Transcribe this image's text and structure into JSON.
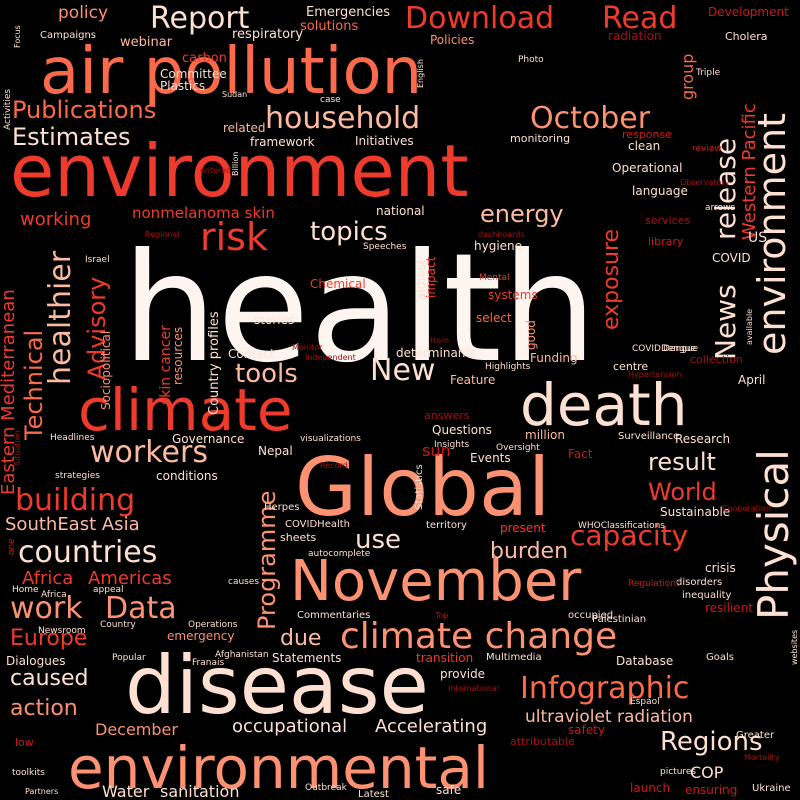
{
  "palette": {
    "background": "#000000",
    "white": "#fff5f0",
    "pale": "#fee0d2",
    "light": "#fcbba1",
    "salmon": "#fc9272",
    "coral": "#fb6a4a",
    "red": "#ef3b2c",
    "crimson": "#cb181d",
    "dark": "#a50f15",
    "deep": "#67000d"
  },
  "words": [
    {
      "text": "health",
      "color": "white"
    },
    {
      "text": "environment",
      "color": "red"
    },
    {
      "text": "air pollution",
      "color": "coral"
    },
    {
      "text": "disease",
      "color": "pale"
    },
    {
      "text": "Global",
      "color": "salmon"
    },
    {
      "text": "November",
      "color": "salmon"
    },
    {
      "text": "environmental",
      "color": "salmon"
    },
    {
      "text": "climate",
      "color": "red"
    },
    {
      "text": "death",
      "color": "pale"
    },
    {
      "text": "Physical",
      "color": "pale"
    },
    {
      "text": "environment",
      "color": "pale"
    },
    {
      "text": "climate change",
      "color": "salmon"
    },
    {
      "text": "household",
      "color": "light"
    },
    {
      "text": "Download",
      "color": "red"
    },
    {
      "text": "Read",
      "color": "red"
    },
    {
      "text": "Report",
      "color": "pale"
    },
    {
      "text": "October",
      "color": "salmon"
    },
    {
      "text": "Infographic",
      "color": "coral"
    },
    {
      "text": "building",
      "color": "red"
    },
    {
      "text": "countries",
      "color": "pale"
    },
    {
      "text": "work",
      "color": "salmon"
    },
    {
      "text": "Data",
      "color": "salmon"
    },
    {
      "text": "workers",
      "color": "light"
    },
    {
      "text": "capacity",
      "color": "red"
    },
    {
      "text": "Publications",
      "color": "coral"
    },
    {
      "text": "Estimates",
      "color": "pale"
    },
    {
      "text": "risk",
      "color": "red"
    },
    {
      "text": "healthier",
      "color": "light"
    },
    {
      "text": "Advisory",
      "color": "red"
    },
    {
      "text": "Technical",
      "color": "coral"
    },
    {
      "text": "News",
      "color": "pale"
    },
    {
      "text": "release",
      "color": "pale"
    },
    {
      "text": "Programme",
      "color": "salmon"
    },
    {
      "text": "Regions",
      "color": "pale"
    },
    {
      "text": "New",
      "color": "pale"
    },
    {
      "text": "tools",
      "color": "light"
    },
    {
      "text": "use",
      "color": "pale"
    },
    {
      "text": "energy",
      "color": "light"
    },
    {
      "text": "topics",
      "color": "pale"
    },
    {
      "text": "exposure",
      "color": "red"
    },
    {
      "text": "result",
      "color": "pale"
    },
    {
      "text": "World",
      "color": "red"
    },
    {
      "text": "burden",
      "color": "light"
    },
    {
      "text": "Europe",
      "color": "red"
    },
    {
      "text": "caused",
      "color": "pale"
    },
    {
      "text": "action",
      "color": "salmon"
    },
    {
      "text": "due",
      "color": "light"
    },
    {
      "text": "Africa",
      "color": "red"
    },
    {
      "text": "Americas",
      "color": "red"
    },
    {
      "text": "SouthEast Asia",
      "color": "light"
    },
    {
      "text": "Eastern Mediterranean",
      "color": "red"
    },
    {
      "text": "Western Pacific",
      "color": "red"
    },
    {
      "text": "ultraviolet radiation",
      "color": "light"
    },
    {
      "text": "occupational",
      "color": "pale"
    },
    {
      "text": "Accelerating",
      "color": "pale"
    },
    {
      "text": "December",
      "color": "salmon"
    },
    {
      "text": "Water",
      "color": "pale"
    },
    {
      "text": "sanitation",
      "color": "pale"
    },
    {
      "text": "COP",
      "color": "pale"
    },
    {
      "text": "group",
      "color": "coral"
    },
    {
      "text": "working",
      "color": "red"
    },
    {
      "text": "nonmelanoma skin",
      "color": "red"
    },
    {
      "text": "skin cancer",
      "color": "red"
    },
    {
      "text": "Country profiles",
      "color": "pale"
    },
    {
      "text": "policy",
      "color": "salmon"
    },
    {
      "text": "Emergencies",
      "color": "pale"
    },
    {
      "text": "solutions",
      "color": "coral"
    },
    {
      "text": "webinar",
      "color": "light"
    },
    {
      "text": "respiratory",
      "color": "pale"
    },
    {
      "text": "Policies",
      "color": "salmon"
    },
    {
      "text": "radiation",
      "color": "dark"
    },
    {
      "text": "Development",
      "color": "crimson"
    },
    {
      "text": "Cholera",
      "color": "pale"
    },
    {
      "text": "Campaigns",
      "color": "pale"
    },
    {
      "text": "carbon",
      "color": "red"
    },
    {
      "text": "Committee",
      "color": "pale"
    },
    {
      "text": "Plastics",
      "color": "pale"
    },
    {
      "text": "related",
      "color": "light"
    },
    {
      "text": "framework",
      "color": "pale"
    },
    {
      "text": "Initiatives",
      "color": "pale"
    },
    {
      "text": "monitoring",
      "color": "pale"
    },
    {
      "text": "clean",
      "color": "pale"
    },
    {
      "text": "response",
      "color": "crimson"
    },
    {
      "text": "Operational",
      "color": "pale"
    },
    {
      "text": "language",
      "color": "pale"
    },
    {
      "text": "national",
      "color": "pale"
    },
    {
      "text": "hygiene",
      "color": "pale"
    },
    {
      "text": "services",
      "color": "dark"
    },
    {
      "text": "library",
      "color": "crimson"
    },
    {
      "text": "COVID",
      "color": "pale"
    },
    {
      "text": "Chemical",
      "color": "red"
    },
    {
      "text": "stories",
      "color": "pale"
    },
    {
      "text": "systems",
      "color": "red"
    },
    {
      "text": "select",
      "color": "coral"
    },
    {
      "text": "determinants",
      "color": "pale"
    },
    {
      "text": "Contact",
      "color": "pale"
    },
    {
      "text": "Funding",
      "color": "light"
    },
    {
      "text": "Feature",
      "color": "light"
    },
    {
      "text": "Highlights",
      "color": "pale"
    },
    {
      "text": "centre",
      "color": "pale"
    },
    {
      "text": "April",
      "color": "pale"
    },
    {
      "text": "collection",
      "color": "dark"
    },
    {
      "text": "Governance",
      "color": "pale"
    },
    {
      "text": "conditions",
      "color": "pale"
    },
    {
      "text": "Questions",
      "color": "pale"
    },
    {
      "text": "answers",
      "color": "dark"
    },
    {
      "text": "million",
      "color": "light"
    },
    {
      "text": "Surveillance",
      "color": "pale"
    },
    {
      "text": "Research",
      "color": "pale"
    },
    {
      "text": "Events",
      "color": "pale"
    },
    {
      "text": "Fact",
      "color": "crimson"
    },
    {
      "text": "sun",
      "color": "crimson"
    },
    {
      "text": "Nepal",
      "color": "pale"
    },
    {
      "text": "Sustainable",
      "color": "pale"
    },
    {
      "text": "WHOClassifications",
      "color": "pale"
    },
    {
      "text": "present",
      "color": "red"
    },
    {
      "text": "territory",
      "color": "pale"
    },
    {
      "text": "crisis",
      "color": "pale"
    },
    {
      "text": "resilient",
      "color": "crimson"
    },
    {
      "text": "disorders",
      "color": "pale"
    },
    {
      "text": "inequality",
      "color": "pale"
    },
    {
      "text": "Palestinian",
      "color": "pale"
    },
    {
      "text": "occupied",
      "color": "pale"
    },
    {
      "text": "emergency",
      "color": "salmon"
    },
    {
      "text": "Statements",
      "color": "pale"
    },
    {
      "text": "transition",
      "color": "red"
    },
    {
      "text": "provide",
      "color": "pale"
    },
    {
      "text": "safe",
      "color": "pale"
    },
    {
      "text": "Multimedia",
      "color": "pale"
    },
    {
      "text": "Database",
      "color": "pale"
    },
    {
      "text": "Goals",
      "color": "pale"
    },
    {
      "text": "safety",
      "color": "crimson"
    },
    {
      "text": "Greater",
      "color": "pale"
    },
    {
      "text": "Mortality",
      "color": "dark"
    },
    {
      "text": "launch",
      "color": "crimson"
    },
    {
      "text": "ensuring",
      "color": "crimson"
    },
    {
      "text": "Ukraine",
      "color": "pale"
    },
    {
      "text": "pictures",
      "color": "pale"
    },
    {
      "text": "Latest",
      "color": "pale"
    },
    {
      "text": "Outbreak",
      "color": "pale"
    },
    {
      "text": "toolkits",
      "color": "pale"
    },
    {
      "text": "Partners",
      "color": "pale"
    },
    {
      "text": "low",
      "color": "crimson"
    },
    {
      "text": "Dialogues",
      "color": "pale"
    },
    {
      "text": "Popular",
      "color": "pale"
    },
    {
      "text": "Franais",
      "color": "pale"
    },
    {
      "text": "Afghanistan",
      "color": "pale"
    },
    {
      "text": "Operations",
      "color": "pale"
    },
    {
      "text": "Country",
      "color": "pale"
    },
    {
      "text": "Newsroom",
      "color": "pale"
    },
    {
      "text": "appeal",
      "color": "pale"
    },
    {
      "text": "Home",
      "color": "pale"
    },
    {
      "text": "Africa",
      "color": "pale"
    },
    {
      "text": "causes",
      "color": "pale"
    },
    {
      "text": "Regulations",
      "color": "crimson"
    },
    {
      "text": "Espaol",
      "color": "pale"
    },
    {
      "text": "International",
      "color": "dark"
    },
    {
      "text": "Commentaries",
      "color": "pale"
    },
    {
      "text": "sheets",
      "color": "pale"
    },
    {
      "text": "autocomplete",
      "color": "pale"
    },
    {
      "text": "COVIDHealth",
      "color": "pale"
    },
    {
      "text": "Statistics",
      "color": "pale"
    },
    {
      "text": "Herpes",
      "color": "pale"
    },
    {
      "text": "Record",
      "color": "dark"
    },
    {
      "text": "Oversight",
      "color": "pale"
    },
    {
      "text": "Insights",
      "color": "pale"
    },
    {
      "text": "strategies",
      "color": "pale"
    },
    {
      "text": "Headlines",
      "color": "pale"
    },
    {
      "text": "Situation",
      "color": "dark"
    },
    {
      "text": "visualizations",
      "color": "pale"
    },
    {
      "text": "Hypertension",
      "color": "dark"
    },
    {
      "text": "COVIDDengue",
      "color": "pale"
    },
    {
      "text": "Monitor",
      "color": "dark"
    },
    {
      "text": "Independent",
      "color": "dark"
    },
    {
      "text": "Sociopolitical",
      "color": "salmon"
    },
    {
      "text": "resources",
      "color": "salmon"
    },
    {
      "text": "almost",
      "color": "pale"
    },
    {
      "text": "impact",
      "color": "red"
    },
    {
      "text": "good",
      "color": "salmon"
    },
    {
      "text": "Mental",
      "color": "red"
    },
    {
      "text": "Horn",
      "color": "dark"
    },
    {
      "text": "Israel",
      "color": "pale"
    },
    {
      "text": "Speeches",
      "color": "pale"
    },
    {
      "text": "Regional",
      "color": "dark"
    },
    {
      "text": "arrows",
      "color": "pale"
    },
    {
      "text": "Observatory",
      "color": "dark"
    },
    {
      "text": "review",
      "color": "crimson"
    },
    {
      "text": "Triple",
      "color": "pale"
    },
    {
      "text": "Photo",
      "color": "pale"
    },
    {
      "text": "English",
      "color": "pale"
    },
    {
      "text": "Sudan",
      "color": "pale"
    },
    {
      "text": "Billion",
      "color": "pale"
    },
    {
      "text": "Focus",
      "color": "pale"
    },
    {
      "text": "Activities",
      "color": "pale"
    },
    {
      "text": "case",
      "color": "pale"
    },
    {
      "text": "dashboards",
      "color": "dark"
    },
    {
      "text": "entered",
      "color": "dark"
    },
    {
      "text": "attributable",
      "color": "dark"
    },
    {
      "text": "Top",
      "color": "dark"
    },
    {
      "text": "Cooperation",
      "color": "dark"
    },
    {
      "text": "available",
      "color": "pale"
    },
    {
      "text": "websites",
      "color": "pale"
    },
    {
      "text": "US",
      "color": "pale"
    },
    {
      "text": "Dengue",
      "color": "pale"
    },
    {
      "text": "one",
      "color": "crimson"
    }
  ]
}
